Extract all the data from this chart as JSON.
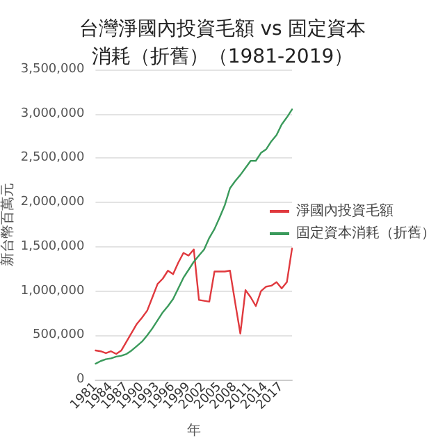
{
  "chart_data": {
    "type": "line",
    "title": "台灣淨國內投資毛額 vs 固定資本消耗（折舊）（1981-2019）",
    "xlabel": "年",
    "ylabel": "新台幣百萬元",
    "categories": [
      "1981",
      null,
      null,
      "1984",
      null,
      null,
      "1987",
      null,
      null,
      "1990",
      null,
      null,
      "1993",
      null,
      null,
      "1996",
      null,
      null,
      "1999",
      null,
      null,
      "2002",
      null,
      null,
      "2005",
      null,
      null,
      "2008",
      null,
      null,
      "2011",
      null,
      null,
      "2014",
      null,
      null,
      "2017",
      null,
      null
    ],
    "series": [
      {
        "name": "淨國內投資毛額",
        "color": "#e0393e",
        "values": [
          330000,
          320000,
          300000,
          320000,
          290000,
          330000,
          430000,
          530000,
          630000,
          700000,
          780000,
          930000,
          1080000,
          1140000,
          1230000,
          1190000,
          1320000,
          1430000,
          1400000,
          1470000,
          900000,
          890000,
          880000,
          1220000,
          1220000,
          1220000,
          1230000,
          870000,
          520000,
          1010000,
          930000,
          830000,
          1000000,
          1050000,
          1060000,
          1100000,
          1030000,
          1100000,
          1480000
        ]
      },
      {
        "name": "固定資本消耗（折舊）",
        "color": "#3a9a5b",
        "values": [
          180000,
          210000,
          230000,
          240000,
          260000,
          270000,
          290000,
          330000,
          380000,
          430000,
          500000,
          580000,
          670000,
          760000,
          830000,
          910000,
          1030000,
          1150000,
          1240000,
          1330000,
          1400000,
          1470000,
          1600000,
          1700000,
          1830000,
          1970000,
          2160000,
          2240000,
          2310000,
          2390000,
          2470000,
          2470000,
          2560000,
          2600000,
          2690000,
          2760000,
          2880000,
          2960000,
          3050000
        ]
      }
    ],
    "ylim": [
      0,
      3500000
    ],
    "yticks": [
      0,
      {
        "value": 500000,
        "label": "500,000"
      },
      {
        "value": 1000000,
        "label": "1,000,000"
      },
      {
        "value": 1500000,
        "label": "1,500,000"
      },
      {
        "value": 2000000,
        "label": "2,000,000"
      },
      {
        "value": 2500000,
        "label": "2,500,000"
      },
      {
        "value": 3000000,
        "label": "3,000,000"
      },
      {
        "value": 3500000,
        "label": "3,500,000"
      }
    ],
    "grid": "y",
    "legend": "right",
    "marker": "none",
    "line_style": "solid"
  }
}
